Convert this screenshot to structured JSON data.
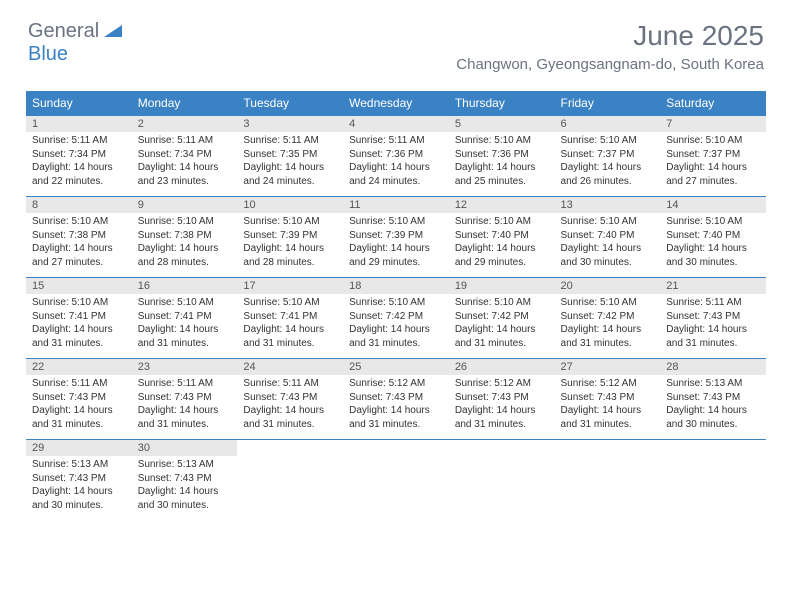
{
  "logo": {
    "text1": "General",
    "text2": "Blue"
  },
  "title": "June 2025",
  "location": "Changwon, Gyeongsangnam-do, South Korea",
  "colors": {
    "header_bg": "#3b82c4",
    "header_text": "#ffffff",
    "daynum_bg": "#e8e8e8",
    "text": "#333333",
    "logo_gray": "#6b7280",
    "logo_blue": "#3b82c4"
  },
  "fonts": {
    "title_size": 28,
    "location_size": 15,
    "weekday_size": 12,
    "daynum_size": 11,
    "body_size": 10
  },
  "weekdays": [
    "Sunday",
    "Monday",
    "Tuesday",
    "Wednesday",
    "Thursday",
    "Friday",
    "Saturday"
  ],
  "days": [
    {
      "n": "1",
      "sunrise": "Sunrise: 5:11 AM",
      "sunset": "Sunset: 7:34 PM",
      "day1": "Daylight: 14 hours",
      "day2": "and 22 minutes."
    },
    {
      "n": "2",
      "sunrise": "Sunrise: 5:11 AM",
      "sunset": "Sunset: 7:34 PM",
      "day1": "Daylight: 14 hours",
      "day2": "and 23 minutes."
    },
    {
      "n": "3",
      "sunrise": "Sunrise: 5:11 AM",
      "sunset": "Sunset: 7:35 PM",
      "day1": "Daylight: 14 hours",
      "day2": "and 24 minutes."
    },
    {
      "n": "4",
      "sunrise": "Sunrise: 5:11 AM",
      "sunset": "Sunset: 7:36 PM",
      "day1": "Daylight: 14 hours",
      "day2": "and 24 minutes."
    },
    {
      "n": "5",
      "sunrise": "Sunrise: 5:10 AM",
      "sunset": "Sunset: 7:36 PM",
      "day1": "Daylight: 14 hours",
      "day2": "and 25 minutes."
    },
    {
      "n": "6",
      "sunrise": "Sunrise: 5:10 AM",
      "sunset": "Sunset: 7:37 PM",
      "day1": "Daylight: 14 hours",
      "day2": "and 26 minutes."
    },
    {
      "n": "7",
      "sunrise": "Sunrise: 5:10 AM",
      "sunset": "Sunset: 7:37 PM",
      "day1": "Daylight: 14 hours",
      "day2": "and 27 minutes."
    },
    {
      "n": "8",
      "sunrise": "Sunrise: 5:10 AM",
      "sunset": "Sunset: 7:38 PM",
      "day1": "Daylight: 14 hours",
      "day2": "and 27 minutes."
    },
    {
      "n": "9",
      "sunrise": "Sunrise: 5:10 AM",
      "sunset": "Sunset: 7:38 PM",
      "day1": "Daylight: 14 hours",
      "day2": "and 28 minutes."
    },
    {
      "n": "10",
      "sunrise": "Sunrise: 5:10 AM",
      "sunset": "Sunset: 7:39 PM",
      "day1": "Daylight: 14 hours",
      "day2": "and 28 minutes."
    },
    {
      "n": "11",
      "sunrise": "Sunrise: 5:10 AM",
      "sunset": "Sunset: 7:39 PM",
      "day1": "Daylight: 14 hours",
      "day2": "and 29 minutes."
    },
    {
      "n": "12",
      "sunrise": "Sunrise: 5:10 AM",
      "sunset": "Sunset: 7:40 PM",
      "day1": "Daylight: 14 hours",
      "day2": "and 29 minutes."
    },
    {
      "n": "13",
      "sunrise": "Sunrise: 5:10 AM",
      "sunset": "Sunset: 7:40 PM",
      "day1": "Daylight: 14 hours",
      "day2": "and 30 minutes."
    },
    {
      "n": "14",
      "sunrise": "Sunrise: 5:10 AM",
      "sunset": "Sunset: 7:40 PM",
      "day1": "Daylight: 14 hours",
      "day2": "and 30 minutes."
    },
    {
      "n": "15",
      "sunrise": "Sunrise: 5:10 AM",
      "sunset": "Sunset: 7:41 PM",
      "day1": "Daylight: 14 hours",
      "day2": "and 31 minutes."
    },
    {
      "n": "16",
      "sunrise": "Sunrise: 5:10 AM",
      "sunset": "Sunset: 7:41 PM",
      "day1": "Daylight: 14 hours",
      "day2": "and 31 minutes."
    },
    {
      "n": "17",
      "sunrise": "Sunrise: 5:10 AM",
      "sunset": "Sunset: 7:41 PM",
      "day1": "Daylight: 14 hours",
      "day2": "and 31 minutes."
    },
    {
      "n": "18",
      "sunrise": "Sunrise: 5:10 AM",
      "sunset": "Sunset: 7:42 PM",
      "day1": "Daylight: 14 hours",
      "day2": "and 31 minutes."
    },
    {
      "n": "19",
      "sunrise": "Sunrise: 5:10 AM",
      "sunset": "Sunset: 7:42 PM",
      "day1": "Daylight: 14 hours",
      "day2": "and 31 minutes."
    },
    {
      "n": "20",
      "sunrise": "Sunrise: 5:10 AM",
      "sunset": "Sunset: 7:42 PM",
      "day1": "Daylight: 14 hours",
      "day2": "and 31 minutes."
    },
    {
      "n": "21",
      "sunrise": "Sunrise: 5:11 AM",
      "sunset": "Sunset: 7:43 PM",
      "day1": "Daylight: 14 hours",
      "day2": "and 31 minutes."
    },
    {
      "n": "22",
      "sunrise": "Sunrise: 5:11 AM",
      "sunset": "Sunset: 7:43 PM",
      "day1": "Daylight: 14 hours",
      "day2": "and 31 minutes."
    },
    {
      "n": "23",
      "sunrise": "Sunrise: 5:11 AM",
      "sunset": "Sunset: 7:43 PM",
      "day1": "Daylight: 14 hours",
      "day2": "and 31 minutes."
    },
    {
      "n": "24",
      "sunrise": "Sunrise: 5:11 AM",
      "sunset": "Sunset: 7:43 PM",
      "day1": "Daylight: 14 hours",
      "day2": "and 31 minutes."
    },
    {
      "n": "25",
      "sunrise": "Sunrise: 5:12 AM",
      "sunset": "Sunset: 7:43 PM",
      "day1": "Daylight: 14 hours",
      "day2": "and 31 minutes."
    },
    {
      "n": "26",
      "sunrise": "Sunrise: 5:12 AM",
      "sunset": "Sunset: 7:43 PM",
      "day1": "Daylight: 14 hours",
      "day2": "and 31 minutes."
    },
    {
      "n": "27",
      "sunrise": "Sunrise: 5:12 AM",
      "sunset": "Sunset: 7:43 PM",
      "day1": "Daylight: 14 hours",
      "day2": "and 31 minutes."
    },
    {
      "n": "28",
      "sunrise": "Sunrise: 5:13 AM",
      "sunset": "Sunset: 7:43 PM",
      "day1": "Daylight: 14 hours",
      "day2": "and 30 minutes."
    },
    {
      "n": "29",
      "sunrise": "Sunrise: 5:13 AM",
      "sunset": "Sunset: 7:43 PM",
      "day1": "Daylight: 14 hours",
      "day2": "and 30 minutes."
    },
    {
      "n": "30",
      "sunrise": "Sunrise: 5:13 AM",
      "sunset": "Sunset: 7:43 PM",
      "day1": "Daylight: 14 hours",
      "day2": "and 30 minutes."
    }
  ]
}
